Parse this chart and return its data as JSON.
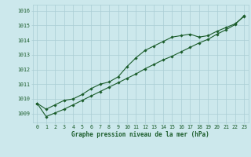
{
  "xlabel": "Graphe pression niveau de la mer (hPa)",
  "background_color": "#cce8ec",
  "grid_color": "#aacdd4",
  "line_color": "#1a5c2a",
  "tick_color": "#1a5c2a",
  "ylim": [
    1008.4,
    1016.4
  ],
  "xlim": [
    -0.5,
    23.5
  ],
  "yticks": [
    1009,
    1010,
    1011,
    1012,
    1013,
    1014,
    1015,
    1016
  ],
  "xticks": [
    0,
    1,
    2,
    3,
    4,
    5,
    6,
    7,
    8,
    9,
    10,
    11,
    12,
    13,
    14,
    15,
    16,
    17,
    18,
    19,
    20,
    21,
    22,
    23
  ],
  "line1_x": [
    0,
    1,
    2,
    3,
    4,
    5,
    6,
    7,
    8,
    9,
    10,
    11,
    12,
    13,
    14,
    15,
    16,
    17,
    18,
    19,
    20,
    21,
    22,
    23
  ],
  "line1_y": [
    1009.7,
    1009.3,
    1009.6,
    1009.9,
    1010.0,
    1010.3,
    1010.7,
    1011.0,
    1011.15,
    1011.5,
    1012.2,
    1012.8,
    1013.3,
    1013.6,
    1013.9,
    1014.2,
    1014.3,
    1014.4,
    1014.2,
    1014.3,
    1014.6,
    1014.85,
    1015.1,
    1015.6
  ],
  "line2_x": [
    0,
    1,
    2,
    3,
    4,
    5,
    6,
    7,
    8,
    9,
    10,
    11,
    12,
    13,
    14,
    15,
    16,
    17,
    18,
    19,
    20,
    21,
    22,
    23
  ],
  "line2_y": [
    1009.7,
    1008.8,
    1009.05,
    1009.3,
    1009.6,
    1009.9,
    1010.2,
    1010.5,
    1010.8,
    1011.1,
    1011.4,
    1011.7,
    1012.05,
    1012.35,
    1012.65,
    1012.9,
    1013.2,
    1013.5,
    1013.8,
    1014.05,
    1014.4,
    1014.7,
    1015.05,
    1015.65
  ],
  "xlabel_fontsize": 5.5,
  "tick_fontsize": 4.8,
  "marker_size": 1.8,
  "line_width": 0.8
}
